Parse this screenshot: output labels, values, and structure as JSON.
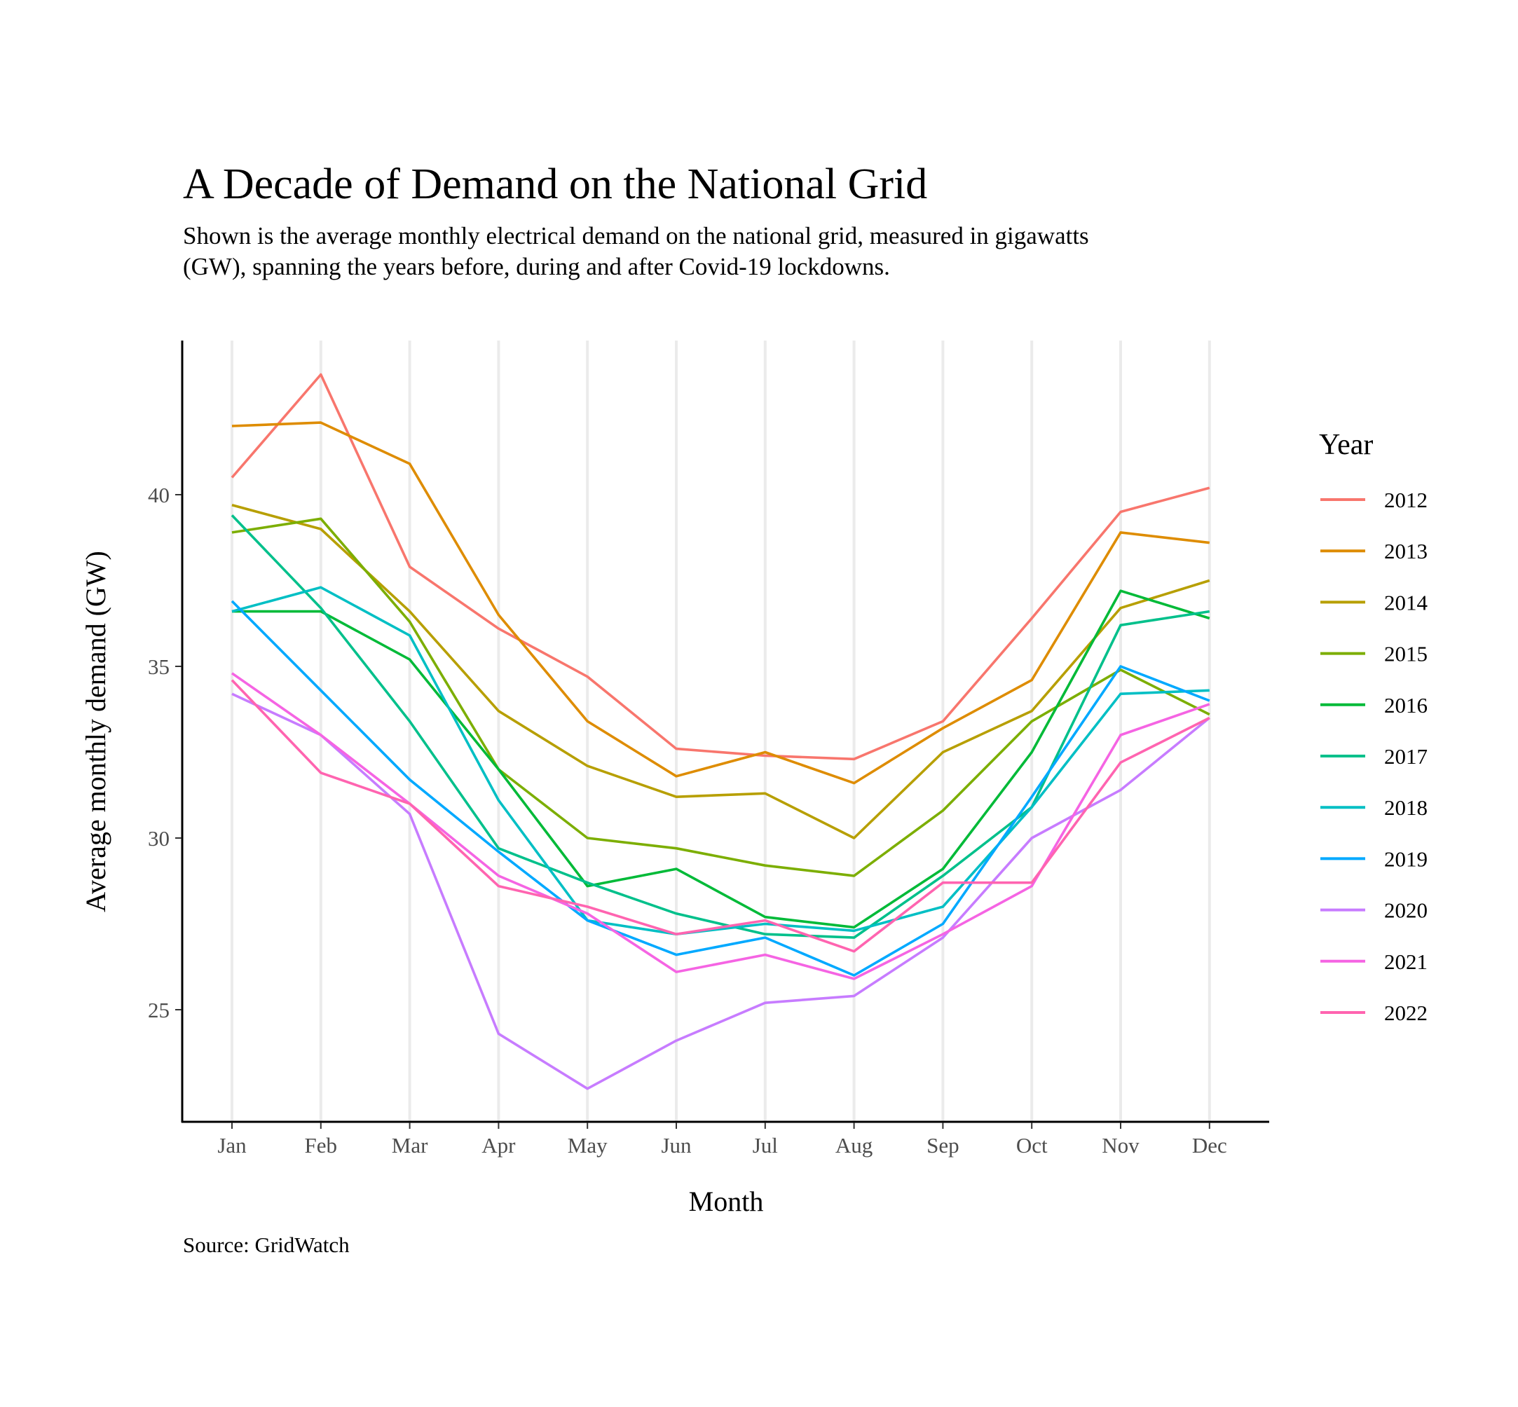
{
  "chart_data": {
    "type": "line",
    "title": "A Decade of Demand on the National Grid",
    "subtitle_lines": [
      "Shown is the average monthly electrical demand on the national grid, measured in gigawatts",
      "(GW), spanning the years before, during and after Covid-19 lockdowns."
    ],
    "xlabel": "Month",
    "ylabel": "Average monthly demand (GW)",
    "caption": "Source: GridWatch",
    "legend_title": "Year",
    "legend_position": "right",
    "grid": "vertical major gridlines only",
    "categories": [
      "Jan",
      "Feb",
      "Mar",
      "Apr",
      "May",
      "Jun",
      "Jul",
      "Aug",
      "Sep",
      "Oct",
      "Nov",
      "Dec"
    ],
    "yticks": [
      25,
      30,
      35,
      40
    ],
    "ylim": [
      21.7,
      44.5
    ],
    "series": [
      {
        "name": "2012",
        "color": "#F8766D",
        "values": [
          40.5,
          43.5,
          37.9,
          36.1,
          34.7,
          32.6,
          32.4,
          32.3,
          33.4,
          36.4,
          39.5,
          40.2
        ]
      },
      {
        "name": "2013",
        "color": "#DE8C00",
        "values": [
          42.0,
          42.1,
          40.9,
          36.5,
          33.4,
          31.8,
          32.5,
          31.6,
          33.2,
          34.6,
          38.9,
          38.6
        ]
      },
      {
        "name": "2014",
        "color": "#B79F00",
        "values": [
          39.7,
          39.0,
          36.6,
          33.7,
          32.1,
          31.2,
          31.3,
          30.0,
          32.5,
          33.7,
          36.7,
          37.5
        ]
      },
      {
        "name": "2015",
        "color": "#7CAE00",
        "values": [
          38.9,
          39.3,
          36.3,
          32.0,
          30.0,
          29.7,
          29.2,
          28.9,
          30.8,
          33.4,
          34.9,
          33.6
        ]
      },
      {
        "name": "2016",
        "color": "#00BA38",
        "values": [
          36.6,
          36.6,
          35.2,
          32.0,
          28.6,
          29.1,
          27.7,
          27.4,
          29.1,
          32.5,
          37.2,
          36.4
        ]
      },
      {
        "name": "2017",
        "color": "#00C08B",
        "values": [
          39.4,
          36.7,
          33.4,
          29.7,
          28.7,
          27.8,
          27.2,
          27.1,
          28.9,
          30.9,
          36.2,
          36.6
        ]
      },
      {
        "name": "2018",
        "color": "#00BFC4",
        "values": [
          36.6,
          37.3,
          35.9,
          31.1,
          27.6,
          27.2,
          27.5,
          27.3,
          28.0,
          30.9,
          34.2,
          34.3
        ]
      },
      {
        "name": "2019",
        "color": "#00A9FF",
        "values": [
          36.9,
          34.3,
          31.7,
          29.6,
          27.6,
          26.6,
          27.1,
          26.0,
          27.5,
          31.2,
          35.0,
          34.0
        ]
      },
      {
        "name": "2020",
        "color": "#C77CFF",
        "values": [
          34.2,
          33.0,
          30.7,
          24.3,
          22.7,
          24.1,
          25.2,
          25.4,
          27.1,
          30.0,
          31.4,
          33.5
        ]
      },
      {
        "name": "2021",
        "color": "#F564E3",
        "values": [
          34.8,
          33.0,
          31.0,
          28.9,
          27.8,
          26.1,
          26.6,
          25.9,
          27.2,
          28.6,
          33.0,
          33.9
        ]
      },
      {
        "name": "2022",
        "color": "#FF64B0",
        "values": [
          34.6,
          31.9,
          31.0,
          28.6,
          28.0,
          27.2,
          27.6,
          26.7,
          28.7,
          28.7,
          32.2,
          33.5
        ]
      }
    ]
  }
}
